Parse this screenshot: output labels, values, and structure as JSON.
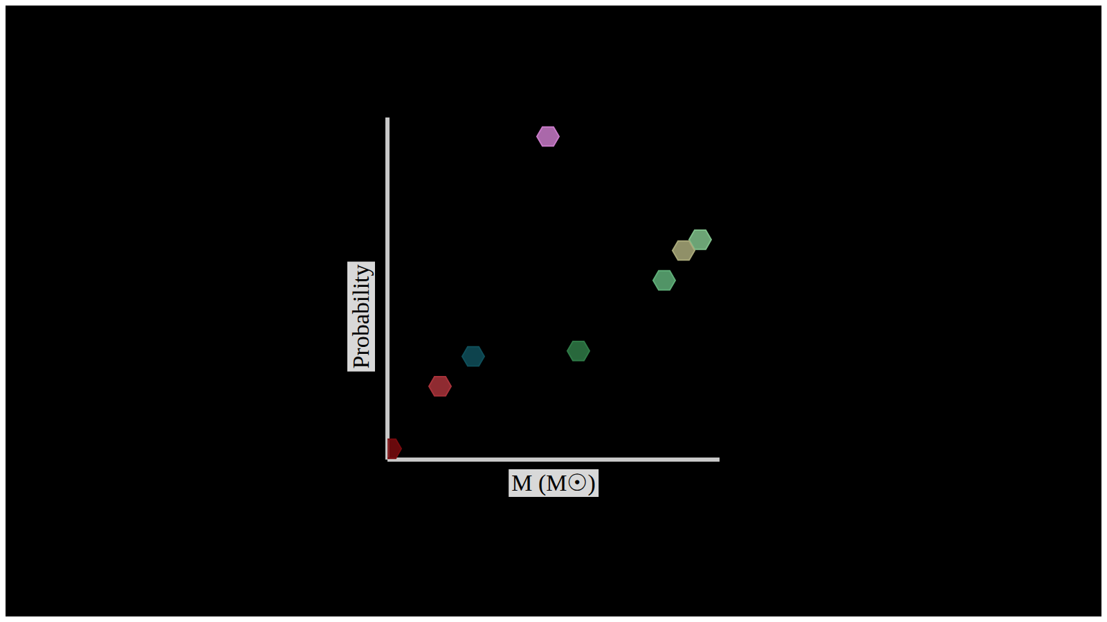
{
  "chart_data": {
    "type": "scatter",
    "x_label": "M (M☉)",
    "y_label": "Probability",
    "x": [
      0.52,
      1.07,
      1.01,
      0.94,
      0.63,
      0.25,
      0.13,
      -0.05
    ],
    "values": [
      1.12,
      0.74,
      0.7,
      0.59,
      0.33,
      0.31,
      0.2,
      -0.03
    ],
    "colors": [
      "#c87ac8",
      "#7fbf8a",
      "#a9a97a",
      "#5fae78",
      "#2f7a47",
      "#0f4f5a",
      "#a8323a",
      "#7a0a0e"
    ],
    "xlim": [
      -0.06,
      1.14
    ],
    "ylim": [
      -0.07,
      1.19
    ],
    "xticks": [],
    "yticks": [],
    "tick_labels": false,
    "grid": false,
    "marker": "hexagon"
  }
}
